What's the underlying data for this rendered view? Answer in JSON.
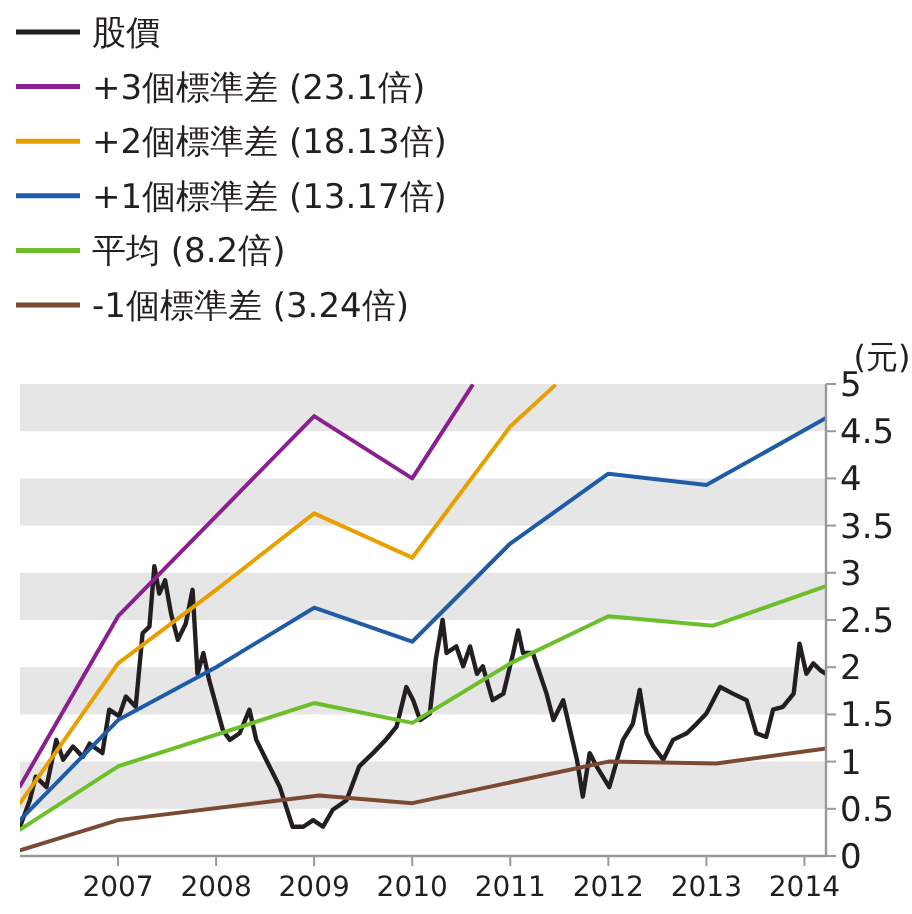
{
  "chart_data": {
    "type": "line",
    "ylabel": "(元)",
    "legend": "top left",
    "bands": [
      {
        "axis": "y",
        "from": 0.5,
        "to": 1,
        "color": "#e6e6e6"
      },
      {
        "axis": "y",
        "from": 1.5,
        "to": 2,
        "color": "#e6e6e6"
      },
      {
        "axis": "y",
        "from": 2.5,
        "to": 3,
        "color": "#e6e6e6"
      },
      {
        "axis": "y",
        "from": 3.5,
        "to": 4,
        "color": "#e6e6e6"
      },
      {
        "axis": "y",
        "from": 4.5,
        "to": 5,
        "color": "#e6e6e6"
      }
    ],
    "line_style": "solid",
    "marker": "none",
    "xlim": [
      2006,
      2014.22
    ],
    "xticks": [
      2007,
      2008,
      2009,
      2010,
      2011,
      2012,
      2013,
      2014
    ],
    "ylim": [
      0,
      5
    ],
    "yticks": [
      0,
      0.5,
      1,
      1.5,
      2,
      2.5,
      3,
      3.5,
      4,
      4.5,
      5
    ],
    "series": [
      {
        "name": "股價",
        "color": "#231f20",
        "x": [
          2006,
          2006.1,
          2006.16,
          2006.27,
          2006.37,
          2006.44,
          2006.54,
          2006.64,
          2006.71,
          2006.84,
          2006.91,
          2007.01,
          2007.08,
          2007.18,
          2007.25,
          2007.32,
          2007.37,
          2007.42,
          2007.48,
          2007.54,
          2007.61,
          2007.69,
          2007.76,
          2007.81,
          2007.87,
          2007.93,
          2008.07,
          2008.14,
          2008.24,
          2008.34,
          2008.41,
          2008.51,
          2008.65,
          2008.78,
          2008.89,
          2008.99,
          2009.09,
          2009.19,
          2009.33,
          2009.46,
          2009.6,
          2009.73,
          2009.84,
          2009.94,
          2010.01,
          2010.08,
          2010.18,
          2010.24,
          2010.31,
          2010.35,
          2010.45,
          2010.52,
          2010.59,
          2010.66,
          2010.72,
          2010.82,
          2010.93,
          2011.03,
          2011.08,
          2011.13,
          2011.23,
          2011.37,
          2011.44,
          2011.54,
          2011.68,
          2011.74,
          2011.81,
          2011.88,
          2012.01,
          2012.09,
          2012.15,
          2012.25,
          2012.32,
          2012.39,
          2012.46,
          2012.56,
          2012.66,
          2012.8,
          2012.9,
          2013.0,
          2013.14,
          2013.27,
          2013.41,
          2013.51,
          2013.61,
          2013.68,
          2013.78,
          2013.89,
          2013.95,
          2014.02,
          2014.09,
          2014.16,
          2014.22
        ],
        "values": [
          0.31,
          0.59,
          0.84,
          0.73,
          1.23,
          1.02,
          1.16,
          1.05,
          1.19,
          1.09,
          1.55,
          1.48,
          1.69,
          1.58,
          2.36,
          2.43,
          3.07,
          2.78,
          2.92,
          2.57,
          2.29,
          2.46,
          2.82,
          1.93,
          2.15,
          1.86,
          1.33,
          1.23,
          1.3,
          1.55,
          1.23,
          1.02,
          0.73,
          0.31,
          0.31,
          0.38,
          0.31,
          0.49,
          0.59,
          0.95,
          1.09,
          1.23,
          1.37,
          1.79,
          1.65,
          1.44,
          1.51,
          2.08,
          2.5,
          2.15,
          2.22,
          2.01,
          2.22,
          1.93,
          2.01,
          1.65,
          1.72,
          2.15,
          2.39,
          2.15,
          2.15,
          1.72,
          1.44,
          1.65,
          1.02,
          0.63,
          1.09,
          0.95,
          0.73,
          1.02,
          1.23,
          1.4,
          1.76,
          1.3,
          1.16,
          1.02,
          1.23,
          1.3,
          1.4,
          1.51,
          1.79,
          1.72,
          1.65,
          1.3,
          1.26,
          1.55,
          1.58,
          1.72,
          2.25,
          1.93,
          2.04,
          1.97,
          1.93
        ]
      },
      {
        "name": "+3個標準差 (23.1倍)",
        "color": "#8b1f8f",
        "x": [
          2006,
          2007,
          2008,
          2009,
          2010,
          2010.61
        ],
        "values": [
          0.74,
          2.54,
          3.6,
          4.66,
          4.0,
          4.98
        ]
      },
      {
        "name": "+2個標準差 (18.13倍)",
        "color": "#e8a000",
        "x": [
          2006,
          2007,
          2008,
          2009,
          2010,
          2011,
          2011.45
        ],
        "values": [
          0.56,
          2.04,
          2.82,
          3.63,
          3.16,
          4.55,
          4.98
        ]
      },
      {
        "name": "+1個標準差 (13.17倍)",
        "color": "#1f5ca8",
        "x": [
          2006,
          2007,
          2008,
          2009,
          2010,
          2011,
          2012,
          2013,
          2014.22
        ],
        "values": [
          0.38,
          1.44,
          2.0,
          2.63,
          2.27,
          3.31,
          4.05,
          3.93,
          4.64
        ]
      },
      {
        "name": "平均 (8.2倍)",
        "color": "#6cbf2a",
        "x": [
          2006,
          2007,
          2009,
          2010,
          2011,
          2012,
          2013.07,
          2014.22
        ],
        "values": [
          0.28,
          0.95,
          1.62,
          1.41,
          2.04,
          2.54,
          2.44,
          2.86
        ]
      },
      {
        "name": "-1個標準差 (3.24倍)",
        "color": "#7a4a32",
        "x": [
          2006,
          2007,
          2009.05,
          2010,
          2012,
          2013.1,
          2014.22
        ],
        "values": [
          0.06,
          0.38,
          0.64,
          0.56,
          1.0,
          0.98,
          1.14
        ]
      }
    ]
  }
}
